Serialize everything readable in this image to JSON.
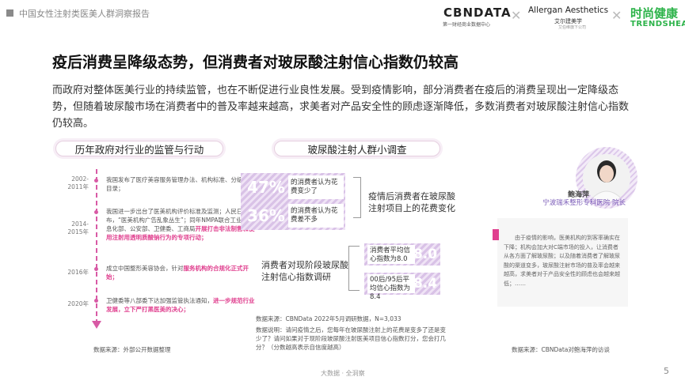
{
  "header": {
    "report_title": "中国女性注射类医美人群洞察报告",
    "logos": {
      "cbndata": "CBNDATA",
      "cbndata_sub": "第一财经商业数据中心",
      "allergan": "Allergan Aesthetics",
      "allergan_sub": "艾尔建美学",
      "allergan_sub2": "艾伯维旗下公司",
      "trends_cn": "时尚健康",
      "trends_en": "TRENDSHEALTH"
    }
  },
  "title": "疫后消费呈降级态势，但消费者对玻尿酸注射信心指数仍较高",
  "intro": "而政府对整体医美行业的持续监管，也在不断促进行业良性发展。受到疫情影响，部分消费者在疫后的消费呈现出一定降级态势，但随着玻尿酸市场在消费者中的普及率越来越高，求美者对产品安全性的顾虑逐渐降低，多数消费者对玻尿酸注射信心指数仍较高。",
  "timeline": {
    "heading": "历年政府对行业的监管与行动",
    "items": [
      {
        "year": "2002-\n2011年",
        "text": "我国发布了医疗美容服务管理办法、机构标准、分级管理目录；",
        "highlight": ""
      },
      {
        "year": "2014-\n2015年",
        "text": "我国进一步出台了医美机构评价标准及监测；人民日报发布，“医美机构广告乱象丛生”；同年NMPA联合工业和信息化部、公安部、卫健委、工商局",
        "highlight": "开展打击非法制售和使用注射用透明质酸钠行为的专项行动；"
      },
      {
        "year": "2016年",
        "text": "成立中国整形美容协会，针对",
        "highlight": "服务机构的合规化正式开始；"
      },
      {
        "year": "2020年",
        "text": "卫健委等八部委下达加强监管执法通知，",
        "highlight": "进一步规范行业发展，立下严打黑医美的决心；"
      }
    ],
    "source": "数据来源：外部公开数据整理"
  },
  "survey": {
    "heading": "玻尿酸注射人群小调查",
    "stats": [
      {
        "pct": "47%",
        "label": "的消费者认为花费变少了"
      },
      {
        "pct": "36%",
        "label": "的消费者认为花费差不多"
      }
    ],
    "stats_note": "疫情后消费者在玻尿酸注射项目上的花费变化",
    "scores": [
      {
        "label": "消费者平均信心指数为8.0",
        "value": "8.0"
      },
      {
        "label": "00后/95后平均信心指数为8.4",
        "value": "8.4"
      }
    ],
    "scores_note": "消费者对现阶段玻尿酸注射信心指数调研",
    "source": "数据来源：CBNData 2022年5月调研数据，N=3,033",
    "method": "数据说明：请问疫情之后，您每年在玻尿酸注射上的花费是变多了还是变少了？请问如果对于现阶段玻尿酸注射医美项目信心指数打分，您会打几分？（分数越高表示自信度越高）"
  },
  "expert": {
    "name": "鲍海萍",
    "title": "宁波瑞禾整形专科医院 院长",
    "quote": "由于疫情的影响，医美机构的到客率确实在下降；机构会加大对C端市场的投入，让消费者从各方面了解玻尿酸；以及随着消费者了解玻尿酸的渠道变多，玻尿酸注射市场的普及率会越来越高，求美者对于产品安全性的顾虑也会越来越低；……",
    "source": "数据来源：CBNData对鲍海萍的访谈"
  },
  "footer": {
    "center": "大数据 · 全洞察",
    "page": "5"
  },
  "colors": {
    "accent_pink": "#e0408f",
    "accent_purple": "#7b5cb8",
    "survey_stripe": "#d9c2e7"
  }
}
